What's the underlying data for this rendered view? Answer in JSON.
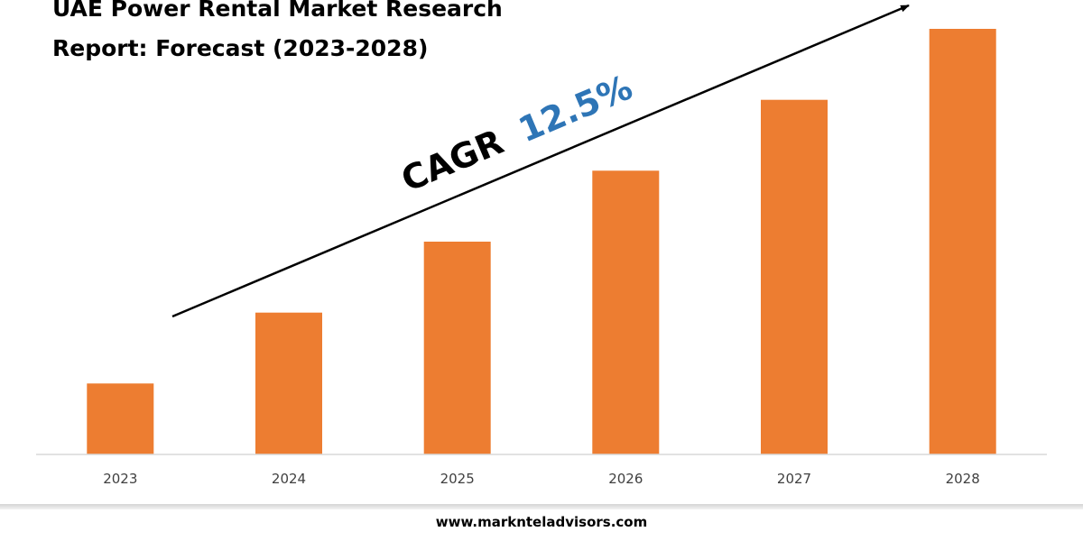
{
  "page": {
    "footer_url": "www.marknteladvisors.com"
  },
  "chart_data": {
    "type": "bar",
    "title_line1": "UAE Power Rental Market Research",
    "title_line2": "Report: Forecast (2023-2028)",
    "categories": [
      "2023",
      "2024",
      "2025",
      "2026",
      "2027",
      "2028"
    ],
    "values": [
      10,
      20,
      30,
      40,
      50,
      60
    ],
    "ylim": [
      0,
      60
    ],
    "xlabel": "",
    "ylabel": "",
    "grid": false,
    "legend": "none",
    "annotation": {
      "prefix": "CAGR",
      "value": "12.5%",
      "prefix_color": "#000000",
      "value_color": "#2e75b6"
    },
    "bar_color": "#ed7d31"
  }
}
